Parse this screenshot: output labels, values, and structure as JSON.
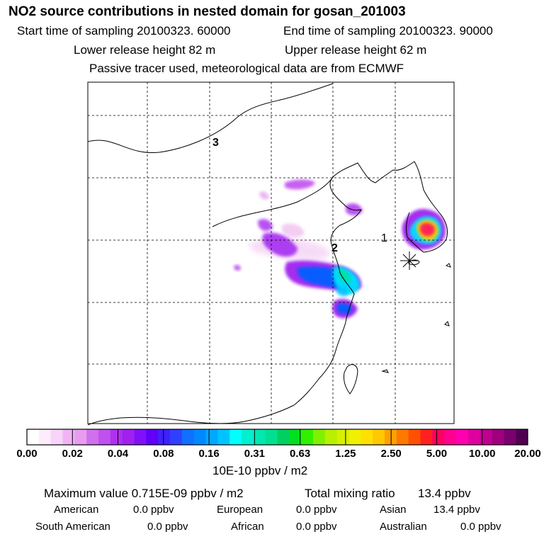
{
  "header": {
    "title": "NO2 source contributions in nested domain for gosan_201003",
    "start_label": "Start time of sampling 20100323. 60000",
    "end_label": "End time of sampling 20100323. 90000",
    "lower_label": "Lower release height   82 m",
    "upper_label": "Upper release height   62 m",
    "note": "Passive tracer used, meteorological data are from ECMWF"
  },
  "chart_data": {
    "type": "heatmap",
    "title": "NO2 source contributions in nested domain for gosan_201003",
    "map_labels": [
      "1",
      "2",
      "3"
    ],
    "colorbar": {
      "unit": "10E-10 ppbv / m2",
      "tick_labels": [
        "0.00",
        "0.02",
        "0.04",
        "0.08",
        "0.16",
        "0.31",
        "0.63",
        "1.25",
        "2.50",
        "5.00",
        "10.00",
        "20.00"
      ],
      "tick_values": [
        0.0,
        0.02,
        0.04,
        0.08,
        0.16,
        0.31,
        0.63,
        1.25,
        2.5,
        5.0,
        10.0,
        20.0
      ],
      "colors": [
        "#ffffff",
        "#fcecfc",
        "#f8d4f8",
        "#f0b4f4",
        "#e89cf0",
        "#d070ec",
        "#c050f0",
        "#b030f0",
        "#a020f0",
        "#8010f8",
        "#6000f8",
        "#4020ff",
        "#3040ff",
        "#1070ff",
        "#0088ff",
        "#00a8ff",
        "#00c4ff",
        "#00ffff",
        "#00f0d0",
        "#00e8b0",
        "#00e090",
        "#00d060",
        "#00e020",
        "#30f000",
        "#80f000",
        "#b8f000",
        "#d8f000",
        "#f0f000",
        "#ffe000",
        "#ffc800",
        "#ffa000",
        "#ff7800",
        "#ff5000",
        "#ff2020",
        "#ff0060",
        "#ff0090",
        "#ff00b0",
        "#e000a0",
        "#c00090",
        "#a00080",
        "#7a0070",
        "#500050"
      ]
    },
    "max_value": "0.715E-09",
    "total_mixing_ratio": "13.4",
    "peak_colors": {
      "core": "#ff1a5a",
      "mid": "#ffd000",
      "edge": "#00e0ff",
      "plume": "#0060ff",
      "haze": "#a020f0"
    }
  },
  "footer": {
    "max_label": "Maximum value  0.715E-09 ppbv / m2",
    "total_label": "Total mixing ratio",
    "total_value": "13.4 ppbv",
    "regions": [
      {
        "name": "American",
        "value": "0.0 ppbv"
      },
      {
        "name": "European",
        "value": "0.0 ppbv"
      },
      {
        "name": "Asian",
        "value": "13.4 ppbv"
      },
      {
        "name": "South American",
        "value": "0.0 ppbv"
      },
      {
        "name": "African",
        "value": "0.0 ppbv"
      },
      {
        "name": "Australian",
        "value": "0.0 ppbv"
      }
    ]
  }
}
